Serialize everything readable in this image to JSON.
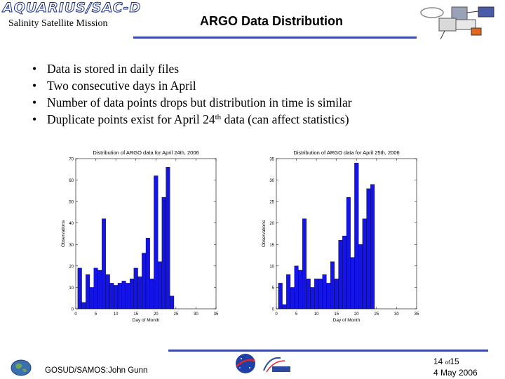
{
  "header": {
    "logo_text": "AQUARIUS/SAC-D",
    "mission": "Salinity Satellite Mission",
    "title": "ARGO Data Distribution"
  },
  "bullets": [
    {
      "text": "Data is stored in daily files"
    },
    {
      "text": "Two consecutive days in April"
    },
    {
      "text": "Number of data points drops but distribution in time is similar"
    },
    {
      "pre": "Duplicate points exist for April 24",
      "sup": "th",
      "post": " data (can affect statistics)"
    }
  ],
  "chart_data": [
    {
      "type": "bar",
      "title": "Distribution of ARGO data for April 24th, 2006",
      "xlabel": "Day of Month",
      "ylabel": "Observations",
      "xlim": [
        0,
        35
      ],
      "ylim": [
        0,
        70
      ],
      "xticks": [
        0,
        5,
        10,
        15,
        20,
        25,
        30,
        35
      ],
      "yticks": [
        0,
        10,
        20,
        30,
        40,
        50,
        60,
        70
      ],
      "x": [
        1,
        2,
        3,
        4,
        5,
        6,
        7,
        8,
        9,
        10,
        11,
        12,
        13,
        14,
        15,
        16,
        17,
        18,
        19,
        20,
        21,
        22,
        23,
        24
      ],
      "values": [
        19,
        3,
        16,
        10,
        19,
        18,
        42,
        16,
        12,
        11,
        12,
        13,
        12,
        14,
        19,
        15,
        26,
        33,
        14,
        62,
        22,
        52,
        66,
        6
      ]
    },
    {
      "type": "bar",
      "title": "Distribution of ARGO data for April 25th, 2006",
      "xlabel": "Day of Month",
      "ylabel": "Observations",
      "xlim": [
        0,
        35
      ],
      "ylim": [
        0,
        35
      ],
      "xticks": [
        0,
        5,
        10,
        15,
        20,
        25,
        30,
        35
      ],
      "yticks": [
        0,
        5,
        10,
        15,
        20,
        25,
        30,
        35
      ],
      "x": [
        1,
        2,
        3,
        4,
        5,
        6,
        7,
        8,
        9,
        10,
        11,
        12,
        13,
        14,
        15,
        16,
        17,
        18,
        19,
        20,
        21,
        22,
        23,
        24
      ],
      "values": [
        6,
        1,
        8,
        5,
        10,
        9,
        21,
        7,
        5,
        7,
        7,
        8,
        6,
        11,
        7,
        16,
        17,
        26,
        12,
        34,
        15,
        21,
        28,
        29
      ]
    }
  ],
  "footer": {
    "author": "GOSUD/SAMOS:John Gunn",
    "page_current": "14",
    "page_of": "of",
    "page_total": "15",
    "date": "4 May 2006"
  },
  "colors": {
    "bar": "#1414e6",
    "rule": "#3a4aa8",
    "logo": "#1b2f86"
  },
  "icons": [
    "satellite-illustration",
    "globe-icon",
    "nasa-logo",
    "conae-logo"
  ]
}
